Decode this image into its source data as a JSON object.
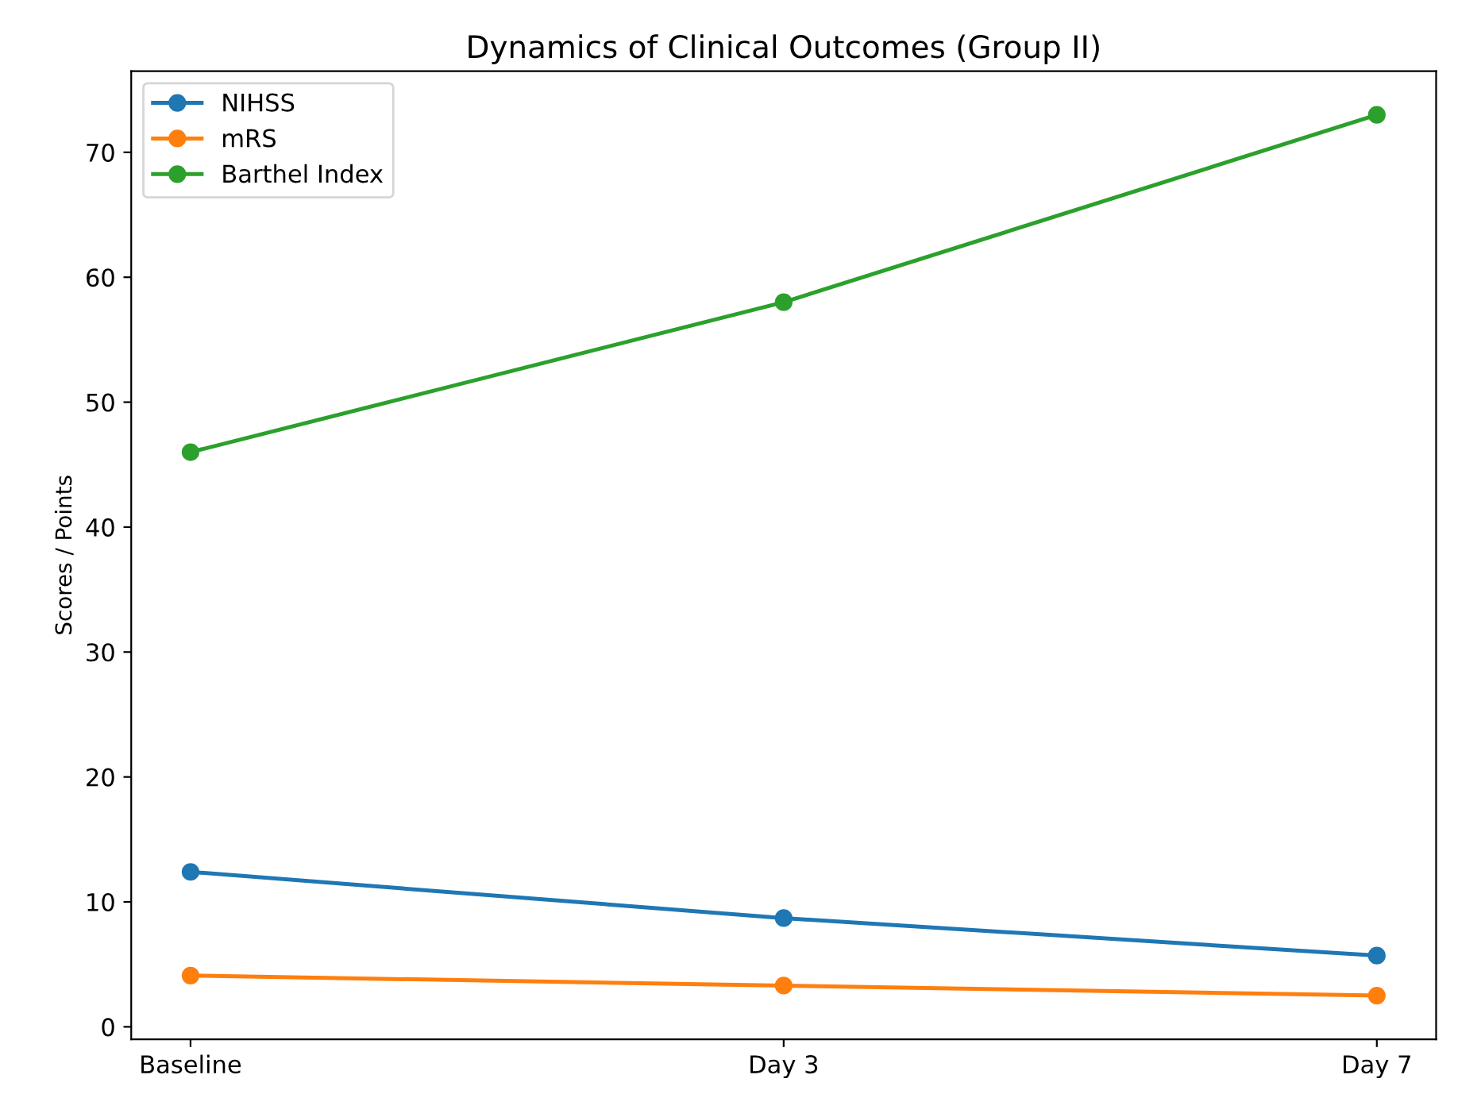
{
  "chart_data": {
    "type": "line",
    "title": "Dynamics of Clinical Outcomes (Group II)",
    "ylabel": "Scores / Points",
    "categories": [
      "Baseline",
      "Day 3",
      "Day 7"
    ],
    "series": [
      {
        "name": "NIHSS",
        "color": "#1f77b4",
        "values": [
          12.4,
          8.7,
          5.7
        ]
      },
      {
        "name": "mRS",
        "color": "#ff7f0e",
        "values": [
          4.1,
          3.3,
          2.5
        ]
      },
      {
        "name": "Barthel Index",
        "color": "#2ca02c",
        "values": [
          46,
          58,
          73
        ]
      }
    ],
    "ylim": [
      -1,
      76.5
    ],
    "yticks": [
      0,
      10,
      20,
      30,
      40,
      50,
      60,
      70
    ],
    "marker": "circle",
    "line_style": "solid",
    "legend": "top left",
    "grid": false
  }
}
